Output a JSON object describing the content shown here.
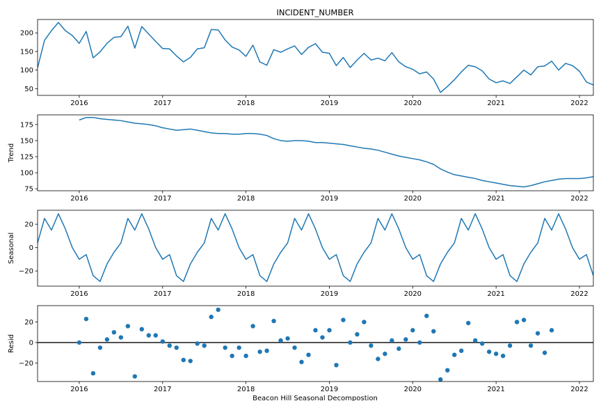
{
  "figure": {
    "title": "INCIDENT_NUMBER",
    "xlabel": "Beacon Hill Seasonal Decompostion",
    "series_color": "#1f77b4"
  },
  "chart_data": [
    {
      "type": "line",
      "title": "INCIDENT_NUMBER",
      "ylabel": "",
      "x_start": "2015-07",
      "xlim": [
        "2015-07",
        "2022-03"
      ],
      "ylim": [
        32,
        236
      ],
      "yticks": [
        50,
        100,
        150,
        200
      ],
      "xtick_labels": [
        "2016",
        "2017",
        "2018",
        "2019",
        "2020",
        "2021",
        "2022"
      ],
      "values": [
        106,
        180,
        206,
        228,
        206,
        193,
        172,
        204,
        133,
        149,
        172,
        188,
        190,
        218,
        159,
        217,
        197,
        177,
        158,
        157,
        138,
        122,
        134,
        157,
        160,
        209,
        208,
        181,
        162,
        154,
        137,
        167,
        122,
        113,
        155,
        148,
        157,
        165,
        142,
        161,
        171,
        148,
        145,
        112,
        134,
        107,
        127,
        145,
        127,
        132,
        125,
        147,
        122,
        109,
        102,
        90,
        95,
        76,
        40,
        56,
        74,
        95,
        113,
        109,
        98,
        76,
        66,
        71,
        64,
        82,
        100,
        87,
        109,
        111,
        124,
        100,
        118,
        112,
        97,
        68,
        60
      ]
    },
    {
      "type": "line",
      "ylabel": "Trend",
      "x_start": "2016-01",
      "xlim": [
        "2015-07",
        "2022-03"
      ],
      "ylim": [
        72,
        190
      ],
      "yticks": [
        75,
        100,
        125,
        150,
        175
      ],
      "xtick_labels": [
        "2016",
        "2017",
        "2018",
        "2019",
        "2020",
        "2021",
        "2022"
      ],
      "values": [
        182,
        186,
        186,
        184,
        183,
        182,
        181,
        179,
        177,
        176,
        175,
        173,
        170,
        168,
        166,
        167,
        168,
        166,
        164,
        162,
        161,
        161,
        160,
        160,
        161,
        161,
        160,
        158,
        153,
        150,
        149,
        150,
        150,
        149,
        147,
        147,
        146,
        145,
        144,
        142,
        140,
        138,
        137,
        135,
        132,
        129,
        126,
        124,
        122,
        120,
        117,
        113,
        106,
        101,
        97,
        95,
        93,
        91,
        88,
        86,
        84,
        82,
        80,
        79,
        78,
        80,
        83,
        86,
        88,
        90,
        91,
        91,
        91,
        92,
        94,
        97,
        98,
        98
      ]
    },
    {
      "type": "line",
      "ylabel": "Seasonal",
      "x_start": "2015-07",
      "xlim": [
        "2015-07",
        "2022-03"
      ],
      "ylim": [
        -33,
        32
      ],
      "yticks": [
        -20,
        0,
        20
      ],
      "xtick_labels": [
        "2016",
        "2017",
        "2018",
        "2019",
        "2020",
        "2021",
        "2022"
      ],
      "values": [
        4,
        25,
        15,
        29,
        16,
        0,
        -10,
        -6,
        -24,
        -29,
        -14,
        -4,
        4,
        25,
        15,
        29,
        16,
        0,
        -10,
        -6,
        -24,
        -29,
        -14,
        -4,
        4,
        25,
        15,
        29,
        16,
        0,
        -10,
        -6,
        -24,
        -29,
        -14,
        -4,
        4,
        25,
        15,
        29,
        16,
        0,
        -10,
        -6,
        -24,
        -29,
        -14,
        -4,
        4,
        25,
        15,
        29,
        16,
        0,
        -10,
        -6,
        -24,
        -29,
        -14,
        -4,
        4,
        25,
        15,
        29,
        16,
        0,
        -10,
        -6,
        -24,
        -29,
        -14,
        -4,
        4,
        25,
        15,
        29,
        16,
        0,
        -10,
        -6,
        -24
      ]
    },
    {
      "type": "scatter",
      "ylabel": "Resid",
      "xlabel": "Beacon Hill Seasonal Decompostion",
      "x_start": "2016-01",
      "xlim": [
        "2015-07",
        "2022-03"
      ],
      "ylim": [
        -38,
        36
      ],
      "yticks": [
        -20,
        0,
        20
      ],
      "xtick_labels": [
        "2016",
        "2017",
        "2018",
        "2019",
        "2020",
        "2021",
        "2022"
      ],
      "zero_line": true,
      "values": [
        0,
        23,
        -30,
        -5,
        3,
        10,
        5,
        16,
        -33,
        13,
        7,
        7,
        1,
        -3,
        -5,
        -17,
        -18,
        -1,
        -3,
        25,
        32,
        -5,
        -13,
        -5,
        -13,
        16,
        -9,
        -8,
        21,
        2,
        4,
        -5,
        -19,
        -12,
        12,
        5,
        12,
        -22,
        22,
        0,
        8,
        20,
        -3,
        -16,
        -11,
        2,
        -6,
        3,
        12,
        0,
        26,
        11,
        -36,
        -27,
        -12,
        -8,
        19,
        2,
        -1,
        -9,
        -11,
        -13,
        -3,
        20,
        22,
        -3,
        9,
        -10,
        12
      ]
    }
  ]
}
